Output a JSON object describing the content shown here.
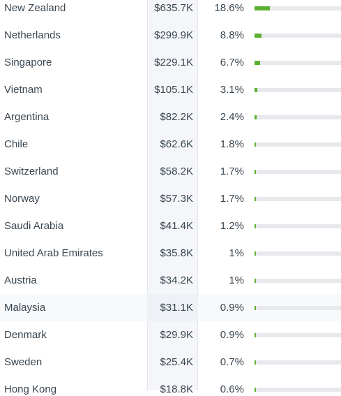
{
  "rows": [
    {
      "country": "New Zealand",
      "revenue": "$635.7K",
      "share": "18.6%",
      "share_value": 18.6
    },
    {
      "country": "Netherlands",
      "revenue": "$299.9K",
      "share": "8.8%",
      "share_value": 8.8
    },
    {
      "country": "Singapore",
      "revenue": "$229.1K",
      "share": "6.7%",
      "share_value": 6.7
    },
    {
      "country": "Vietnam",
      "revenue": "$105.1K",
      "share": "3.1%",
      "share_value": 3.1
    },
    {
      "country": "Argentina",
      "revenue": "$82.2K",
      "share": "2.4%",
      "share_value": 2.4
    },
    {
      "country": "Chile",
      "revenue": "$62.6K",
      "share": "1.8%",
      "share_value": 1.8
    },
    {
      "country": "Switzerland",
      "revenue": "$58.2K",
      "share": "1.7%",
      "share_value": 1.7
    },
    {
      "country": "Norway",
      "revenue": "$57.3K",
      "share": "1.7%",
      "share_value": 1.7
    },
    {
      "country": "Saudi Arabia",
      "revenue": "$41.4K",
      "share": "1.2%",
      "share_value": 1.2
    },
    {
      "country": "United Arab Emirates",
      "revenue": "$35.8K",
      "share": "1%",
      "share_value": 1.0
    },
    {
      "country": "Austria",
      "revenue": "$34.2K",
      "share": "1%",
      "share_value": 1.0
    },
    {
      "country": "Malaysia",
      "revenue": "$31.1K",
      "share": "0.9%",
      "share_value": 0.9
    },
    {
      "country": "Denmark",
      "revenue": "$29.9K",
      "share": "0.9%",
      "share_value": 0.9
    },
    {
      "country": "Sweden",
      "revenue": "$25.4K",
      "share": "0.7%",
      "share_value": 0.7
    },
    {
      "country": "Hong Kong",
      "revenue": "$18.8K",
      "share": "0.6%",
      "share_value": 0.6
    }
  ],
  "highlighted_row": 11,
  "colors": {
    "bar_fill": "#5cb031",
    "bar_track": "#e7e9ec",
    "revenue_column_bg": "#f4f6f9"
  }
}
